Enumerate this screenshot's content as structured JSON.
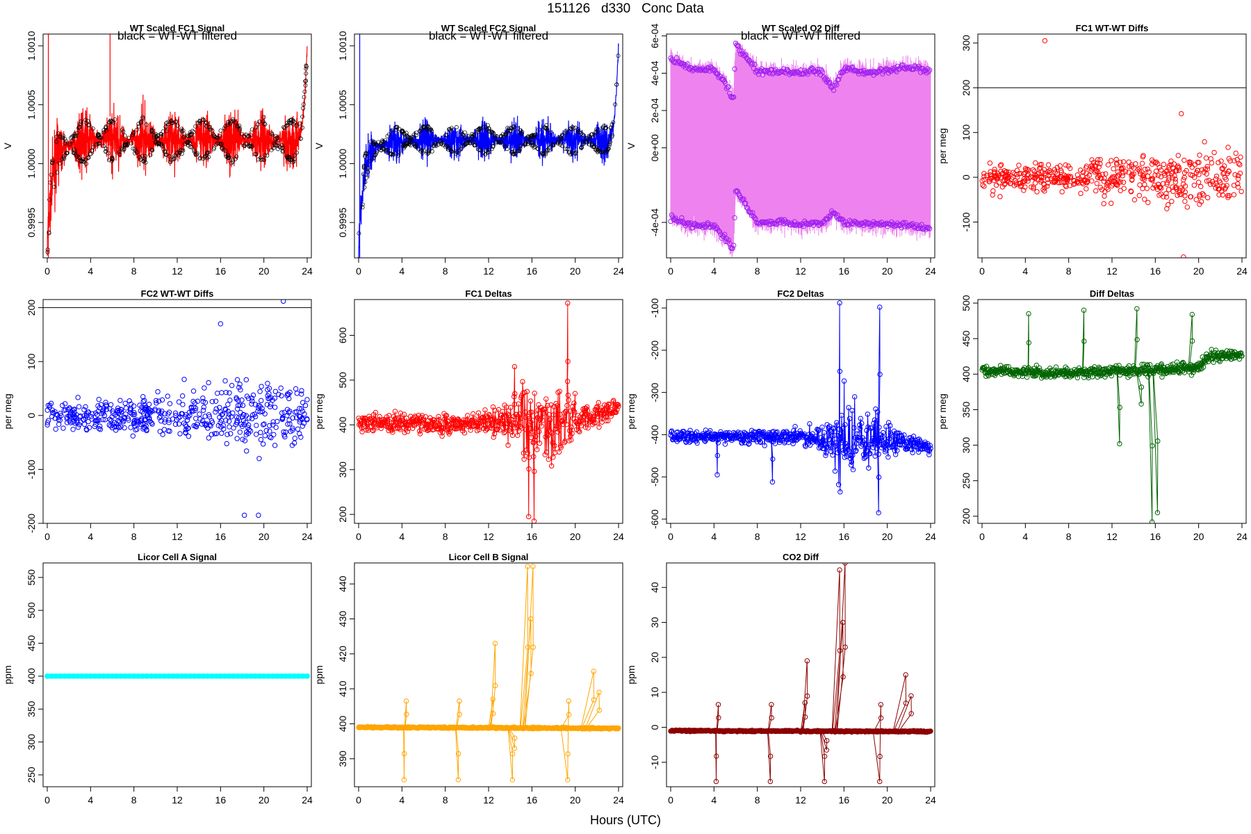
{
  "page": {
    "title": "151126   d330   Conc Data",
    "xlabel": "Hours (UTC)"
  },
  "chart_data": [
    {
      "id": "p1",
      "type": "line",
      "title": "WT Scaled FC1 Signal",
      "subtitle": "black = WT-WT filtered",
      "xlabel": "",
      "ylabel": "V",
      "xlim": [
        0,
        24
      ],
      "ylim": [
        0.9992,
        1.0011
      ],
      "yticks": [
        "0.9995",
        "1.0000",
        "1.0005",
        "1.0010"
      ],
      "ytick_values": [
        0.9995,
        1.0,
        1.0005,
        1.001
      ],
      "xticks": [
        0,
        4,
        8,
        12,
        16,
        20,
        24
      ],
      "grid": false,
      "color": "#ff0000",
      "x": [
        0,
        0.1,
        0.3,
        0.6,
        1,
        2,
        4,
        6,
        8,
        10,
        12,
        14,
        16,
        18,
        20,
        22,
        23,
        23.5,
        23.8,
        24
      ],
      "y": [
        0.9993,
        0.99945,
        0.9997,
        0.99995,
        1.0001,
        1.00015,
        1.0002,
        1.0002,
        1.0002,
        1.0002,
        1.0002,
        1.0002,
        1.0002,
        1.0002,
        1.0002,
        1.0002,
        1.0002,
        1.0003,
        1.0006,
        1.001
      ],
      "band": 0.0003,
      "overlay": {
        "name": "WT-WT filtered",
        "color": "#000000"
      }
    },
    {
      "id": "p2",
      "type": "line",
      "title": "WT Scaled FC2 Signal",
      "subtitle": "black = WT-WT filtered",
      "xlabel": "",
      "ylabel": "V",
      "xlim": [
        0,
        24
      ],
      "ylim": [
        0.9992,
        1.0011
      ],
      "yticks": [
        "0.9995",
        "1.0000",
        "1.0005",
        "1.0010"
      ],
      "ytick_values": [
        0.9995,
        1.0,
        1.0005,
        1.001
      ],
      "xticks": [
        0,
        4,
        8,
        12,
        16,
        20,
        24
      ],
      "grid": false,
      "color": "#0000ff",
      "x": [
        0,
        0.1,
        0.3,
        0.6,
        1,
        2,
        4,
        6,
        8,
        10,
        12,
        14,
        16,
        18,
        20,
        22,
        23,
        23.5,
        23.8,
        24
      ],
      "y": [
        0.9993,
        0.99945,
        0.9997,
        0.99995,
        1.0001,
        1.00015,
        1.0002,
        1.0002,
        1.0002,
        1.0002,
        1.0002,
        1.0002,
        1.0002,
        1.0002,
        1.0002,
        1.0002,
        1.0002,
        1.0003,
        1.0006,
        1.001
      ],
      "band": 0.0002,
      "overlay": {
        "name": "WT-WT filtered",
        "color": "#000000"
      }
    },
    {
      "id": "p3",
      "type": "line",
      "title": "WT Scaled O2 Diff",
      "subtitle": "black = WT-WT filtered",
      "xlabel": "",
      "ylabel": "V",
      "xlim": [
        0,
        24
      ],
      "ylim": [
        -0.00059,
        0.00061
      ],
      "yticks": [
        "-4e-04",
        "0e+00",
        "2e-04",
        "4e-04",
        "6e-04"
      ],
      "ytick_values": [
        -0.0004,
        0,
        0.0002,
        0.0004,
        0.0006
      ],
      "xticks": [
        0,
        4,
        8,
        12,
        16,
        20,
        24
      ],
      "grid": false,
      "color": "#ee82ee",
      "point_color": "#a020f0",
      "upper_x": [
        0,
        2,
        4,
        5,
        5.8,
        6,
        8,
        10,
        12,
        13,
        14,
        15,
        16,
        18,
        20,
        22,
        24
      ],
      "upper_y": [
        0.00048,
        0.00042,
        0.00042,
        0.00036,
        0.00026,
        0.00055,
        0.00041,
        0.00041,
        0.0004,
        0.00042,
        0.0004,
        0.00032,
        0.00043,
        0.0004,
        0.00042,
        0.00043,
        0.00041
      ],
      "lower_x": [
        0,
        2,
        4,
        5,
        5.8,
        6,
        8,
        10,
        12,
        13,
        14,
        15,
        16,
        18,
        20,
        22,
        24
      ],
      "lower_y": [
        -0.00038,
        -0.00041,
        -0.00042,
        -0.00048,
        -0.00055,
        -0.00022,
        -0.0004,
        -0.0004,
        -0.00041,
        -0.0004,
        -0.00041,
        -0.00034,
        -0.0004,
        -0.00041,
        -0.00041,
        -0.00042,
        -0.00043
      ]
    },
    {
      "id": "p4",
      "type": "scatter",
      "title": "FC1 WT-WT Diffs",
      "xlabel": "",
      "ylabel": "per meg",
      "xlim": [
        0,
        24
      ],
      "ylim": [
        -180,
        320
      ],
      "yticks": [
        "-100",
        "0",
        "100",
        "200",
        "300"
      ],
      "ytick_values": [
        -100,
        0,
        100,
        200,
        300
      ],
      "xticks": [
        0,
        4,
        8,
        12,
        16,
        20,
        24
      ],
      "grid": false,
      "color": "#ff0000",
      "hline": 200,
      "spread": [
        [
          0,
          25
        ],
        [
          8,
          35
        ],
        [
          14,
          55
        ],
        [
          20,
          65
        ],
        [
          24,
          50
        ]
      ],
      "outliers": [
        {
          "x": 5.8,
          "y": 305
        },
        {
          "x": 18.6,
          "y": -178
        },
        {
          "x": 18.4,
          "y": 142
        }
      ]
    },
    {
      "id": "p5",
      "type": "scatter",
      "title": "FC2 WT-WT Diffs",
      "xlabel": "",
      "ylabel": "per meg",
      "xlim": [
        0,
        24
      ],
      "ylim": [
        -200,
        215
      ],
      "yticks": [
        "-200",
        "-100",
        "0",
        "100",
        "200"
      ],
      "ytick_values": [
        -200,
        -100,
        0,
        100,
        200
      ],
      "xticks": [
        0,
        4,
        8,
        12,
        16,
        20,
        24
      ],
      "grid": false,
      "color": "#0000ff",
      "hline": 200,
      "spread": [
        [
          0,
          25
        ],
        [
          8,
          30
        ],
        [
          14,
          45
        ],
        [
          20,
          70
        ],
        [
          24,
          45
        ]
      ],
      "outliers": [
        {
          "x": 21.8,
          "y": 212
        },
        {
          "x": 18.2,
          "y": -185
        },
        {
          "x": 19.5,
          "y": -185
        },
        {
          "x": 16,
          "y": 170
        }
      ]
    },
    {
      "id": "p6",
      "type": "line",
      "title": "FC1 Deltas",
      "xlabel": "",
      "ylabel": "per meg",
      "xlim": [
        0,
        24
      ],
      "ylim": [
        180,
        680
      ],
      "yticks": [
        "200",
        "300",
        "400",
        "500",
        "600"
      ],
      "ytick_values": [
        200,
        300,
        400,
        500,
        600
      ],
      "xticks": [
        0,
        4,
        8,
        12,
        16,
        20,
        24
      ],
      "grid": false,
      "color": "#ff0000",
      "base": [
        [
          0,
          405
        ],
        [
          8,
          402
        ],
        [
          12,
          405
        ],
        [
          14,
          410
        ],
        [
          18,
          405
        ],
        [
          22,
          425
        ],
        [
          24,
          430
        ]
      ],
      "noise": [
        [
          0,
          20
        ],
        [
          12,
          22
        ],
        [
          14.5,
          60
        ],
        [
          16,
          90
        ],
        [
          19,
          80
        ],
        [
          21,
          30
        ],
        [
          24,
          25
        ]
      ],
      "spikes": [
        {
          "x": 19.3,
          "y": 672
        },
        {
          "x": 16.2,
          "y": 185
        },
        {
          "x": 15.7,
          "y": 195
        },
        {
          "x": 14.4,
          "y": 530
        }
      ]
    },
    {
      "id": "p7",
      "type": "line",
      "title": "FC2 Deltas",
      "xlabel": "",
      "ylabel": "per meg",
      "xlim": [
        0,
        24
      ],
      "ylim": [
        -610,
        -80
      ],
      "yticks": [
        "-600",
        "-500",
        "-400",
        "-300",
        "-200",
        "-100"
      ],
      "ytick_values": [
        -600,
        -500,
        -400,
        -300,
        -200,
        -100
      ],
      "xticks": [
        0,
        4,
        8,
        12,
        16,
        20,
        24
      ],
      "grid": false,
      "color": "#0000ff",
      "base": [
        [
          0,
          -405
        ],
        [
          8,
          -403
        ],
        [
          12,
          -405
        ],
        [
          14,
          -410
        ],
        [
          18,
          -415
        ],
        [
          22,
          -420
        ],
        [
          24,
          -430
        ]
      ],
      "noise": [
        [
          0,
          15
        ],
        [
          12,
          18
        ],
        [
          14.5,
          40
        ],
        [
          15.7,
          110
        ],
        [
          19,
          70
        ],
        [
          21,
          25
        ],
        [
          24,
          20
        ]
      ],
      "spikes": [
        {
          "x": 15.6,
          "y": -88
        },
        {
          "x": 19.3,
          "y": -98
        },
        {
          "x": 19.2,
          "y": -585
        },
        {
          "x": 4.3,
          "y": -495
        },
        {
          "x": 9.4,
          "y": -512
        }
      ]
    },
    {
      "id": "p8",
      "type": "line",
      "title": "Diff Deltas",
      "xlabel": "",
      "ylabel": "per meg",
      "xlim": [
        0,
        24
      ],
      "ylim": [
        190,
        505
      ],
      "yticks": [
        "200",
        "250",
        "300",
        "350",
        "400",
        "450",
        "500"
      ],
      "ytick_values": [
        200,
        250,
        300,
        350,
        400,
        450,
        500
      ],
      "xticks": [
        0,
        4,
        8,
        12,
        16,
        20,
        24
      ],
      "grid": false,
      "color": "#006400",
      "base": [
        [
          0,
          405
        ],
        [
          8,
          402
        ],
        [
          14,
          405
        ],
        [
          18,
          408
        ],
        [
          20,
          410
        ],
        [
          21,
          425
        ],
        [
          24,
          427
        ]
      ],
      "noise": [
        [
          0,
          7
        ],
        [
          24,
          8
        ]
      ],
      "spikes": [
        {
          "x": 4.3,
          "y": 485
        },
        {
          "x": 9.4,
          "y": 490
        },
        {
          "x": 14.3,
          "y": 492
        },
        {
          "x": 19.4,
          "y": 484
        },
        {
          "x": 15.7,
          "y": 192
        },
        {
          "x": 16.2,
          "y": 205
        },
        {
          "x": 12.7,
          "y": 302
        },
        {
          "x": 14.7,
          "y": 358
        }
      ]
    },
    {
      "id": "p9",
      "type": "line",
      "title": "Licor Cell A Signal",
      "xlabel": "",
      "ylabel": "ppm",
      "xlim": [
        0,
        24
      ],
      "ylim": [
        232,
        572
      ],
      "yticks": [
        "250",
        "300",
        "350",
        "400",
        "450",
        "500",
        "550"
      ],
      "ytick_values": [
        250,
        300,
        350,
        400,
        450,
        500,
        550
      ],
      "xticks": [
        0,
        4,
        8,
        12,
        16,
        20,
        24
      ],
      "grid": false,
      "color": "#00ffff",
      "x": [
        0,
        24
      ],
      "y": [
        400,
        400
      ]
    },
    {
      "id": "p10",
      "type": "line",
      "title": "Licor Cell B Signal",
      "xlabel": "",
      "ylabel": "ppm",
      "xlim": [
        0,
        24
      ],
      "ylim": [
        382,
        446
      ],
      "yticks": [
        "390",
        "400",
        "410",
        "420",
        "430",
        "440"
      ],
      "ytick_values": [
        390,
        400,
        410,
        420,
        430,
        440
      ],
      "xticks": [
        0,
        4,
        8,
        12,
        16,
        20,
        24
      ],
      "grid": false,
      "color": "#ffa500",
      "base": [
        [
          0,
          399
        ],
        [
          24,
          398.7
        ]
      ],
      "noise": [
        [
          0,
          0.2
        ],
        [
          24,
          0.2
        ]
      ],
      "spikes": [
        {
          "x": 4.2,
          "y": 384
        },
        {
          "x": 4.4,
          "y": 406.5
        },
        {
          "x": 9.2,
          "y": 384
        },
        {
          "x": 9.3,
          "y": 406.5
        },
        {
          "x": 14.2,
          "y": 384
        },
        {
          "x": 14.4,
          "y": 393
        },
        {
          "x": 19.3,
          "y": 384
        },
        {
          "x": 19.4,
          "y": 406.5
        },
        {
          "x": 12.6,
          "y": 423
        },
        {
          "x": 15.6,
          "y": 445
        },
        {
          "x": 16.1,
          "y": 445
        },
        {
          "x": 15.9,
          "y": 430
        },
        {
          "x": 21.7,
          "y": 415
        },
        {
          "x": 22.2,
          "y": 409
        },
        {
          "x": 12.4,
          "y": 407
        }
      ]
    },
    {
      "id": "p11",
      "type": "line",
      "title": "CO2 Diff",
      "xlabel": "",
      "ylabel": "ppm",
      "xlim": [
        0,
        24
      ],
      "ylim": [
        -17,
        47
      ],
      "yticks": [
        "-10",
        "0",
        "10",
        "20",
        "30",
        "40"
      ],
      "ytick_values": [
        -10,
        0,
        10,
        20,
        30,
        40
      ],
      "xticks": [
        0,
        4,
        8,
        12,
        16,
        20,
        24
      ],
      "grid": false,
      "color": "#8b0000",
      "base": [
        [
          0,
          -1
        ],
        [
          24,
          -1.2
        ]
      ],
      "noise": [
        [
          0,
          0.2
        ],
        [
          24,
          0.2
        ]
      ],
      "spikes": [
        {
          "x": 4.2,
          "y": -15.5
        },
        {
          "x": 4.4,
          "y": 6.5
        },
        {
          "x": 9.2,
          "y": -15.5
        },
        {
          "x": 9.3,
          "y": 6.5
        },
        {
          "x": 14.2,
          "y": -15.5
        },
        {
          "x": 14.4,
          "y": -6.5
        },
        {
          "x": 19.3,
          "y": -15.5
        },
        {
          "x": 19.4,
          "y": 6.5
        },
        {
          "x": 12.6,
          "y": 19
        },
        {
          "x": 15.6,
          "y": 45
        },
        {
          "x": 16.1,
          "y": 47
        },
        {
          "x": 15.9,
          "y": 30
        },
        {
          "x": 21.7,
          "y": 15
        },
        {
          "x": 22.2,
          "y": 9
        },
        {
          "x": 12.4,
          "y": 7
        }
      ]
    }
  ]
}
